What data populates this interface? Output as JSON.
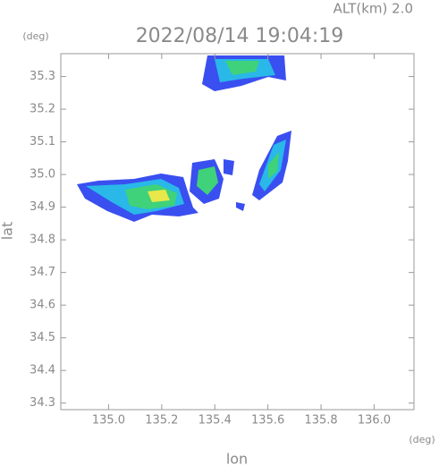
{
  "chart_data": {
    "type": "map",
    "altitude_label": "ALT(km) 2.0",
    "title": "2022/08/14 19:04:19",
    "y_unit": "(deg)",
    "x_unit": "(deg)",
    "y_label": "lat",
    "x_label": "lon",
    "xlim": [
      134.82,
      136.15
    ],
    "ylim": [
      34.28,
      35.37
    ],
    "xticks": [
      {
        "value": 135,
        "label": "135.0"
      },
      135.2,
      135.4,
      135.6,
      135.8,
      {
        "value": 136,
        "label": "136.0"
      }
    ],
    "yticks": [
      34.3,
      34.4,
      34.5,
      34.6,
      34.7,
      34.8,
      34.9,
      {
        "value": 35,
        "label": "35.0"
      },
      35.1,
      35.2,
      35.3
    ]
  }
}
